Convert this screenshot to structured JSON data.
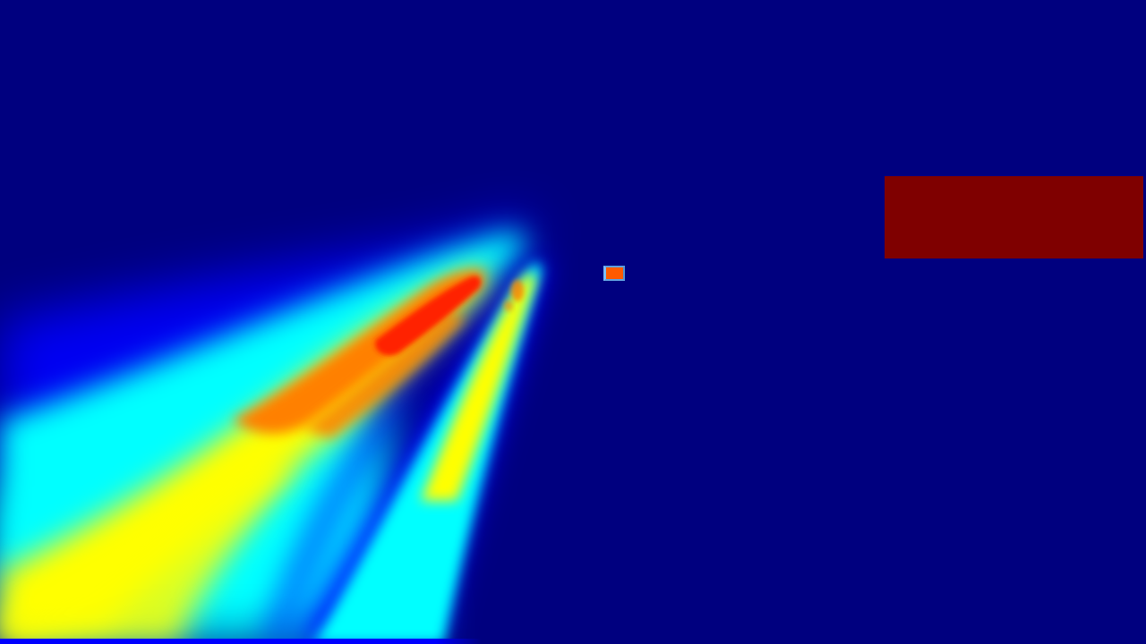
{
  "colors": {
    "background": "#00007f",
    "block": "#7f0000",
    "marker": "#ff5a00",
    "cold": "#0000ff",
    "cool": "#00ffff",
    "mid": "#ffff00",
    "warm": "#ff8000",
    "hot": "#ff2000"
  }
}
